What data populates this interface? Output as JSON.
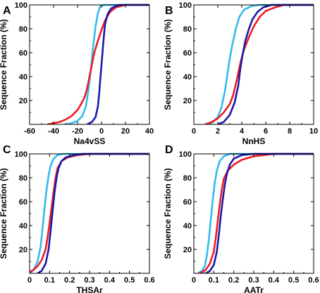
{
  "colors": {
    "cyan": "#33bbee",
    "red": "#ee1c24",
    "blue": "#1a1aaa"
  },
  "chart_data": [
    {
      "type": "line",
      "panel": "A",
      "xlabel": "Na4vSS",
      "ylabel": "Sequence Fraction (%)",
      "xlim": [
        -60,
        40
      ],
      "ylim": [
        0,
        100
      ],
      "xticks": [
        -60,
        -40,
        -20,
        0,
        20,
        40
      ],
      "yticks": [
        20,
        40,
        60,
        80,
        100
      ],
      "series": [
        {
          "color": "cyan",
          "points": [
            [
              -30,
              0
            ],
            [
              -25,
              1
            ],
            [
              -20,
              3
            ],
            [
              -16,
              7
            ],
            [
              -13,
              15
            ],
            [
              -11,
              28
            ],
            [
              -9,
              45
            ],
            [
              -7,
              65
            ],
            [
              -5,
              82
            ],
            [
              -3,
              93
            ],
            [
              -1,
              99
            ],
            [
              2,
              100
            ],
            [
              40,
              100
            ]
          ]
        },
        {
          "color": "red",
          "points": [
            [
              -45,
              0
            ],
            [
              -40,
              1
            ],
            [
              -35,
              2
            ],
            [
              -30,
              4
            ],
            [
              -25,
              7
            ],
            [
              -20,
              12
            ],
            [
              -17,
              17
            ],
            [
              -14,
              23
            ],
            [
              -12,
              30
            ],
            [
              -10,
              40
            ],
            [
              -8,
              50
            ],
            [
              -6,
              60
            ],
            [
              -3,
              70
            ],
            [
              0,
              79
            ],
            [
              3,
              87
            ],
            [
              7,
              94
            ],
            [
              12,
              98
            ],
            [
              20,
              100
            ],
            [
              40,
              100
            ]
          ]
        },
        {
          "color": "blue",
          "points": [
            [
              -12,
              0
            ],
            [
              -8,
              2
            ],
            [
              -5,
              6
            ],
            [
              -3,
              15
            ],
            [
              -2,
              25
            ],
            [
              -1,
              38
            ],
            [
              0,
              50
            ],
            [
              1,
              62
            ],
            [
              2,
              74
            ],
            [
              3,
              84
            ],
            [
              5,
              92
            ],
            [
              8,
              97
            ],
            [
              12,
              99
            ],
            [
              15,
              100
            ],
            [
              40,
              100
            ]
          ]
        }
      ]
    },
    {
      "type": "line",
      "panel": "B",
      "xlabel": "NnHS",
      "ylabel": "Sequence Fraction (%)",
      "xlim": [
        0,
        10
      ],
      "ylim": [
        0,
        100
      ],
      "xticks": [
        0,
        2,
        4,
        6,
        8,
        10
      ],
      "yticks": [
        20,
        40,
        60,
        80,
        100
      ],
      "series": [
        {
          "color": "cyan",
          "points": [
            [
              1.2,
              0
            ],
            [
              1.6,
              2
            ],
            [
              2.0,
              6
            ],
            [
              2.3,
              14
            ],
            [
              2.6,
              28
            ],
            [
              2.8,
              42
            ],
            [
              3.0,
              55
            ],
            [
              3.2,
              66
            ],
            [
              3.5,
              80
            ],
            [
              3.8,
              90
            ],
            [
              4.2,
              96
            ],
            [
              4.8,
              99
            ],
            [
              5.5,
              100
            ],
            [
              10,
              100
            ]
          ]
        },
        {
          "color": "red",
          "points": [
            [
              1.0,
              0
            ],
            [
              1.5,
              2
            ],
            [
              2.0,
              5
            ],
            [
              2.5,
              10
            ],
            [
              3.0,
              17
            ],
            [
              3.3,
              25
            ],
            [
              3.6,
              38
            ],
            [
              3.9,
              52
            ],
            [
              4.2,
              63
            ],
            [
              4.6,
              73
            ],
            [
              5.0,
              82
            ],
            [
              5.5,
              90
            ],
            [
              6.0,
              95
            ],
            [
              6.8,
              98
            ],
            [
              7.5,
              100
            ],
            [
              10,
              100
            ]
          ]
        },
        {
          "color": "blue",
          "points": [
            [
              2.0,
              0
            ],
            [
              2.5,
              2
            ],
            [
              3.0,
              8
            ],
            [
              3.4,
              18
            ],
            [
              3.7,
              32
            ],
            [
              3.9,
              48
            ],
            [
              4.1,
              60
            ],
            [
              4.3,
              70
            ],
            [
              4.6,
              80
            ],
            [
              4.9,
              88
            ],
            [
              5.3,
              94
            ],
            [
              5.8,
              98
            ],
            [
              6.5,
              100
            ],
            [
              10,
              100
            ]
          ]
        }
      ]
    },
    {
      "type": "line",
      "panel": "C",
      "xlabel": "THSAr",
      "ylabel": "Sequence Fraction (%)",
      "xlim": [
        0,
        0.6
      ],
      "ylim": [
        0,
        100
      ],
      "xticks": [
        0,
        0.1,
        0.2,
        0.3,
        0.4,
        0.5,
        0.6
      ],
      "yticks": [
        20,
        40,
        60,
        80,
        100
      ],
      "series": [
        {
          "color": "cyan",
          "points": [
            [
              0.0,
              0
            ],
            [
              0.02,
              3
            ],
            [
              0.04,
              10
            ],
            [
              0.055,
              22
            ],
            [
              0.065,
              38
            ],
            [
              0.075,
              55
            ],
            [
              0.085,
              70
            ],
            [
              0.095,
              82
            ],
            [
              0.105,
              90
            ],
            [
              0.12,
              96
            ],
            [
              0.14,
              99
            ],
            [
              0.17,
              100
            ],
            [
              0.6,
              100
            ]
          ]
        },
        {
          "color": "red",
          "points": [
            [
              0.0,
              1
            ],
            [
              0.02,
              3
            ],
            [
              0.04,
              6
            ],
            [
              0.06,
              11
            ],
            [
              0.08,
              20
            ],
            [
              0.09,
              30
            ],
            [
              0.1,
              42
            ],
            [
              0.11,
              55
            ],
            [
              0.12,
              68
            ],
            [
              0.13,
              80
            ],
            [
              0.14,
              88
            ],
            [
              0.16,
              94
            ],
            [
              0.19,
              97
            ],
            [
              0.24,
              99
            ],
            [
              0.3,
              100
            ],
            [
              0.6,
              100
            ]
          ]
        },
        {
          "color": "blue",
          "points": [
            [
              0.04,
              0
            ],
            [
              0.06,
              2
            ],
            [
              0.08,
              8
            ],
            [
              0.095,
              20
            ],
            [
              0.105,
              35
            ],
            [
              0.115,
              52
            ],
            [
              0.125,
              68
            ],
            [
              0.135,
              80
            ],
            [
              0.145,
              88
            ],
            [
              0.16,
              94
            ],
            [
              0.18,
              97
            ],
            [
              0.22,
              99
            ],
            [
              0.27,
              100
            ],
            [
              0.6,
              100
            ]
          ]
        }
      ]
    },
    {
      "type": "line",
      "panel": "D",
      "xlabel": "AATr",
      "ylabel": "Sequence Fraction (%)",
      "xlim": [
        0,
        0.6
      ],
      "ylim": [
        0,
        100
      ],
      "xticks": [
        0,
        0.1,
        0.2,
        0.3,
        0.4,
        0.5,
        0.6
      ],
      "yticks": [
        20,
        40,
        60,
        80,
        100
      ],
      "series": [
        {
          "color": "cyan",
          "points": [
            [
              0.02,
              0
            ],
            [
              0.04,
              2
            ],
            [
              0.055,
              6
            ],
            [
              0.065,
              15
            ],
            [
              0.075,
              28
            ],
            [
              0.085,
              45
            ],
            [
              0.095,
              62
            ],
            [
              0.105,
              76
            ],
            [
              0.115,
              86
            ],
            [
              0.13,
              94
            ],
            [
              0.15,
              98
            ],
            [
              0.18,
              100
            ],
            [
              0.6,
              100
            ]
          ]
        },
        {
          "color": "red",
          "points": [
            [
              0.03,
              0
            ],
            [
              0.06,
              3
            ],
            [
              0.08,
              8
            ],
            [
              0.1,
              18
            ],
            [
              0.11,
              30
            ],
            [
              0.12,
              44
            ],
            [
              0.13,
              58
            ],
            [
              0.14,
              70
            ],
            [
              0.15,
              79
            ],
            [
              0.17,
              86
            ],
            [
              0.2,
              91
            ],
            [
              0.24,
              95
            ],
            [
              0.3,
              98
            ],
            [
              0.4,
              100
            ],
            [
              0.6,
              100
            ]
          ]
        },
        {
          "color": "blue",
          "points": [
            [
              0.06,
              0
            ],
            [
              0.08,
              2
            ],
            [
              0.1,
              7
            ],
            [
              0.115,
              18
            ],
            [
              0.125,
              32
            ],
            [
              0.135,
              48
            ],
            [
              0.145,
              62
            ],
            [
              0.155,
              74
            ],
            [
              0.165,
              83
            ],
            [
              0.18,
              91
            ],
            [
              0.2,
              96
            ],
            [
              0.24,
              99
            ],
            [
              0.3,
              100
            ],
            [
              0.6,
              100
            ]
          ]
        }
      ]
    }
  ]
}
